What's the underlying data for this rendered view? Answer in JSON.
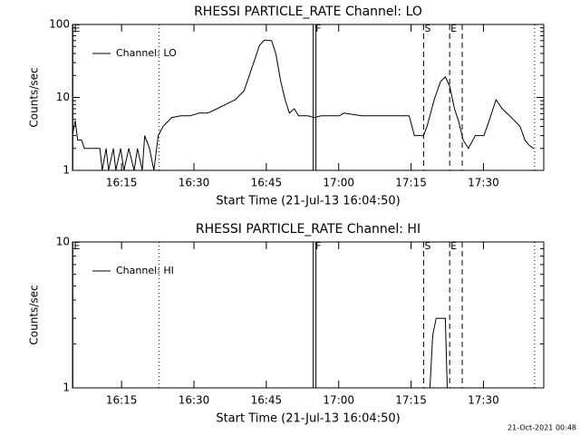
{
  "chart_data": [
    {
      "type": "line",
      "title": "RHESSI PARTICLE_RATE Channel: LO",
      "xlabel": "Start Time (21-Jul-13 16:04:50)",
      "ylabel": "Counts/sec",
      "log_y": true,
      "legend": "upper left",
      "xlim": [
        4.83,
        102.5
      ],
      "ylim": [
        1,
        100
      ],
      "xticks": [
        {
          "value": 15,
          "label": "16:15"
        },
        {
          "value": 30,
          "label": "16:30"
        },
        {
          "value": 45,
          "label": "16:45"
        },
        {
          "value": 60,
          "label": "17:00"
        },
        {
          "value": 75,
          "label": "17:15"
        },
        {
          "value": 90,
          "label": "17:30"
        }
      ],
      "yticks": [
        1,
        10,
        100
      ],
      "x": [
        4.8,
        5.4,
        5.9,
        6.7,
        7.3,
        8.6,
        10.5,
        11,
        11.8,
        12.3,
        13.3,
        13.8,
        14.8,
        15.5,
        16.5,
        17.6,
        18.3,
        19.3,
        19.8,
        20.8,
        21.7,
        22.6,
        23.6,
        24.5,
        25.4,
        27.3,
        29.2,
        31.1,
        32.9,
        34.8,
        36.7,
        38.6,
        40.4,
        42.3,
        43.6,
        44.6,
        46.1,
        47,
        48,
        48.9,
        49.8,
        50.8,
        51.7,
        53.6,
        54.9,
        56.4,
        60.1,
        61.1,
        64.8,
        68.6,
        72.3,
        74.6,
        75.7,
        77.6,
        78.3,
        79.8,
        81.1,
        82.1,
        83,
        84,
        84.9,
        85.8,
        86.9,
        88.3,
        90.1,
        91.1,
        92.6,
        93.9,
        95.8,
        97.6,
        98.6,
        99.5,
        100.4
      ],
      "series": [
        {
          "name": "Channel: LO",
          "color": "#000000",
          "values": [
            3,
            4.8,
            2.6,
            2.6,
            2,
            2,
            2,
            1,
            2,
            1,
            2,
            1,
            2,
            1,
            2,
            1,
            2,
            1,
            3,
            2,
            1,
            3,
            4,
            4.6,
            5.3,
            5.6,
            5.6,
            6.1,
            6.1,
            7,
            8.1,
            9.3,
            12.4,
            29,
            52,
            61,
            60,
            39,
            16.5,
            9.3,
            6.1,
            7,
            5.6,
            5.6,
            5.3,
            5.6,
            5.6,
            6.1,
            5.6,
            5.6,
            5.6,
            5.6,
            3,
            3,
            4,
            9.3,
            16.5,
            19.1,
            14.3,
            7,
            4.6,
            2.6,
            2,
            3,
            3,
            4.6,
            9.3,
            7,
            5.3,
            4,
            2.6,
            2.2,
            2
          ]
        }
      ],
      "markers": [
        {
          "x": 4.9,
          "label": "E",
          "style": "solid"
        },
        {
          "x": 22.8,
          "style": "dotted"
        },
        {
          "x": 55,
          "label": "F",
          "style": "double"
        },
        {
          "x": 77.6,
          "label": "S",
          "style": "dashed"
        },
        {
          "x": 83,
          "label": "E",
          "style": "dashed"
        },
        {
          "x": 85.6,
          "style": "dashed"
        },
        {
          "x": 100.6,
          "style": "dotted"
        }
      ]
    },
    {
      "type": "line",
      "title": "RHESSI PARTICLE_RATE Channel: HI",
      "xlabel": "Start Time (21-Jul-13 16:04:50)",
      "ylabel": "Counts/sec",
      "log_y": true,
      "legend": "upper left",
      "xlim": [
        4.83,
        102.5
      ],
      "ylim": [
        1,
        10
      ],
      "xticks": [
        {
          "value": 15,
          "label": "16:15"
        },
        {
          "value": 30,
          "label": "16:30"
        },
        {
          "value": 45,
          "label": "16:45"
        },
        {
          "value": 60,
          "label": "17:00"
        },
        {
          "value": 75,
          "label": "17:15"
        },
        {
          "value": 90,
          "label": "17:30"
        }
      ],
      "yticks": [
        1,
        10
      ],
      "x": [
        4.8,
        78.9,
        79.5,
        80.2,
        82.1,
        82.5,
        102.5
      ],
      "series": [
        {
          "name": "Channel: HI",
          "color": "#000000",
          "values": [
            1,
            1,
            2.3,
            3,
            3,
            1,
            1
          ]
        }
      ],
      "markers": [
        {
          "x": 4.9,
          "label": "E",
          "style": "solid"
        },
        {
          "x": 22.8,
          "style": "dotted"
        },
        {
          "x": 55,
          "label": "F",
          "style": "double"
        },
        {
          "x": 77.6,
          "label": "S",
          "style": "dashed"
        },
        {
          "x": 83,
          "label": "E",
          "style": "dashed"
        },
        {
          "x": 85.6,
          "style": "dashed"
        },
        {
          "x": 100.6,
          "style": "dotted"
        }
      ]
    }
  ],
  "footer": "21-Oct-2021 00:48"
}
